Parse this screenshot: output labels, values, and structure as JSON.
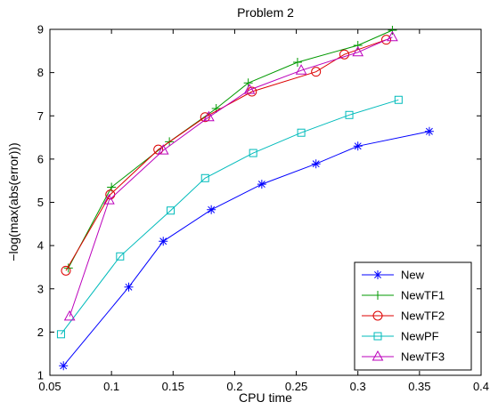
{
  "chart_data": {
    "type": "line",
    "title": "Problem 2",
    "xlabel": "CPU time",
    "ylabel": "−log(max(abs(error)))",
    "xlim": [
      0.05,
      0.4
    ],
    "ylim": [
      1,
      9
    ],
    "xticks": [
      "0.05",
      "0.1",
      "0.15",
      "0.2",
      "0.25",
      "0.3",
      "0.35",
      "0.4"
    ],
    "yticks": [
      "1",
      "2",
      "3",
      "4",
      "5",
      "6",
      "7",
      "8",
      "9"
    ],
    "grid": false,
    "legend_position": "bottom-right",
    "series": [
      {
        "name": "New",
        "color": "#0000ff",
        "marker": "asterisk",
        "x": [
          0.061,
          0.114,
          0.142,
          0.181,
          0.222,
          0.266,
          0.3,
          0.358
        ],
        "y": [
          1.22,
          3.04,
          4.1,
          4.83,
          5.42,
          5.89,
          6.3,
          6.64
        ]
      },
      {
        "name": "NewTF1",
        "color": "#009900",
        "marker": "plus",
        "x": [
          0.065,
          0.1,
          0.147,
          0.185,
          0.211,
          0.251,
          0.3,
          0.328
        ],
        "y": [
          3.48,
          5.35,
          6.4,
          7.17,
          7.76,
          8.24,
          8.63,
          8.98
        ]
      },
      {
        "name": "NewTF2",
        "color": "#dd0000",
        "marker": "circle",
        "x": [
          0.063,
          0.099,
          0.138,
          0.176,
          0.214,
          0.266,
          0.289,
          0.323
        ],
        "y": [
          3.42,
          5.18,
          6.22,
          6.97,
          7.56,
          8.02,
          8.42,
          8.76
        ]
      },
      {
        "name": "NewPF",
        "color": "#00bbbb",
        "marker": "square",
        "x": [
          0.059,
          0.107,
          0.148,
          0.176,
          0.215,
          0.254,
          0.293,
          0.333
        ],
        "y": [
          1.95,
          3.75,
          4.81,
          5.56,
          6.14,
          6.61,
          7.02,
          7.37
        ]
      },
      {
        "name": "NewTF3",
        "color": "#bb00bb",
        "marker": "triangle",
        "x": [
          0.066,
          0.098,
          0.142,
          0.179,
          0.212,
          0.254,
          0.3,
          0.328
        ],
        "y": [
          2.36,
          5.05,
          6.2,
          6.97,
          7.6,
          8.05,
          8.47,
          8.82
        ]
      }
    ]
  }
}
